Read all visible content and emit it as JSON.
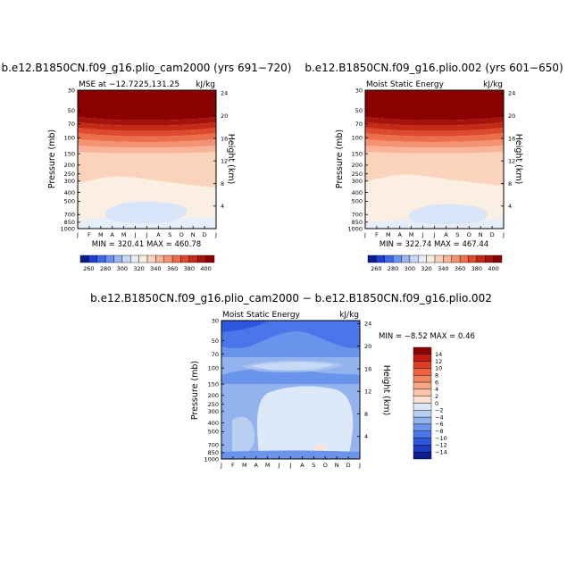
{
  "chart_data": [
    {
      "type": "heatmap",
      "id": "p1",
      "main_title": "b.e12.B1850CN.f09_g16.plio_cam2000 (yrs 691−720)",
      "left_string": "MSE at −12.7225,131.25",
      "right_string": "kJ/kg",
      "ylabel": "Pressure (mb)",
      "ylabel_right": "Height (km)",
      "x_ticks": [
        "J",
        "F",
        "M",
        "A",
        "M",
        "J",
        "J",
        "A",
        "S",
        "O",
        "N",
        "D",
        "J"
      ],
      "y_ticks": [
        "30",
        "50",
        "70",
        "100",
        "150",
        "200",
        "250",
        "300",
        "400",
        "500",
        "700",
        "850",
        "1000"
      ],
      "y_right_ticks": [
        "24",
        "20",
        "16",
        "12",
        "8",
        "4"
      ],
      "stats": "MIN = 320.41  MAX = 460.78",
      "min": 320.41,
      "max": 460.78
    },
    {
      "type": "heatmap",
      "id": "p2",
      "main_title": "b.e12.B1850CN.f09_g16.plio.002 (yrs 601−650)",
      "left_string": "Moist Static Energy",
      "right_string": "kJ/kg",
      "ylabel": "Pressure (mb)",
      "ylabel_right": "Height (km)",
      "x_ticks": [
        "J",
        "F",
        "M",
        "A",
        "M",
        "J",
        "J",
        "A",
        "S",
        "O",
        "N",
        "D",
        "J"
      ],
      "y_ticks": [
        "30",
        "50",
        "70",
        "100",
        "150",
        "200",
        "250",
        "300",
        "400",
        "500",
        "700",
        "850",
        "1000"
      ],
      "y_right_ticks": [
        "24",
        "20",
        "16",
        "12",
        "8",
        "4"
      ],
      "stats": "MIN = 322.74  MAX = 467.44",
      "min": 322.74,
      "max": 467.44
    },
    {
      "type": "heatmap",
      "id": "p3",
      "main_title": "b.e12.B1850CN.f09_g16.plio_cam2000 − b.e12.B1850CN.f09_g16.plio.002",
      "left_string": "Moist Static Energy",
      "right_string": "kJ/kg",
      "ylabel": "Pressure (mb)",
      "ylabel_right": "Height (km)",
      "x_ticks": [
        "J",
        "F",
        "M",
        "A",
        "M",
        "J",
        "J",
        "A",
        "S",
        "O",
        "N",
        "D",
        "J"
      ],
      "y_ticks": [
        "30",
        "50",
        "70",
        "100",
        "150",
        "200",
        "250",
        "300",
        "400",
        "500",
        "700",
        "850",
        "1000"
      ],
      "y_right_ticks": [
        "24",
        "20",
        "16",
        "12",
        "8",
        "4"
      ],
      "stats": "MIN =   −8.52 MAX =    0.46",
      "min": -8.52,
      "max": 0.46
    }
  ],
  "colorbar_abs": {
    "labels": [
      "260",
      "280",
      "300",
      "320",
      "340",
      "360",
      "380",
      "400"
    ],
    "colors": [
      "#0b1e8f",
      "#1f3fd0",
      "#3f68e8",
      "#6a92f0",
      "#9ab6f2",
      "#c7d8f7",
      "#e6eefb",
      "#fbeee2",
      "#fbd2bc",
      "#f8b39a",
      "#f39373",
      "#ec6f4d",
      "#dd4a2d",
      "#c52a17",
      "#a5130c",
      "#8b0000"
    ]
  },
  "colorbar_diff": {
    "labels": [
      "14",
      "12",
      "10",
      "8",
      "6",
      "4",
      "2",
      "0",
      "−2",
      "−4",
      "−6",
      "−8",
      "−10",
      "−12",
      "−14"
    ],
    "colors": [
      "#8b0000",
      "#c21a0d",
      "#df3d23",
      "#ef6140",
      "#f48563",
      "#f7a587",
      "#fac4ab",
      "#fde2d4",
      "#dde9f8",
      "#b9cff2",
      "#93b3ee",
      "#6a93ec",
      "#4a76ea",
      "#2f57de",
      "#1a3bc3",
      "#0b1e8f"
    ]
  }
}
